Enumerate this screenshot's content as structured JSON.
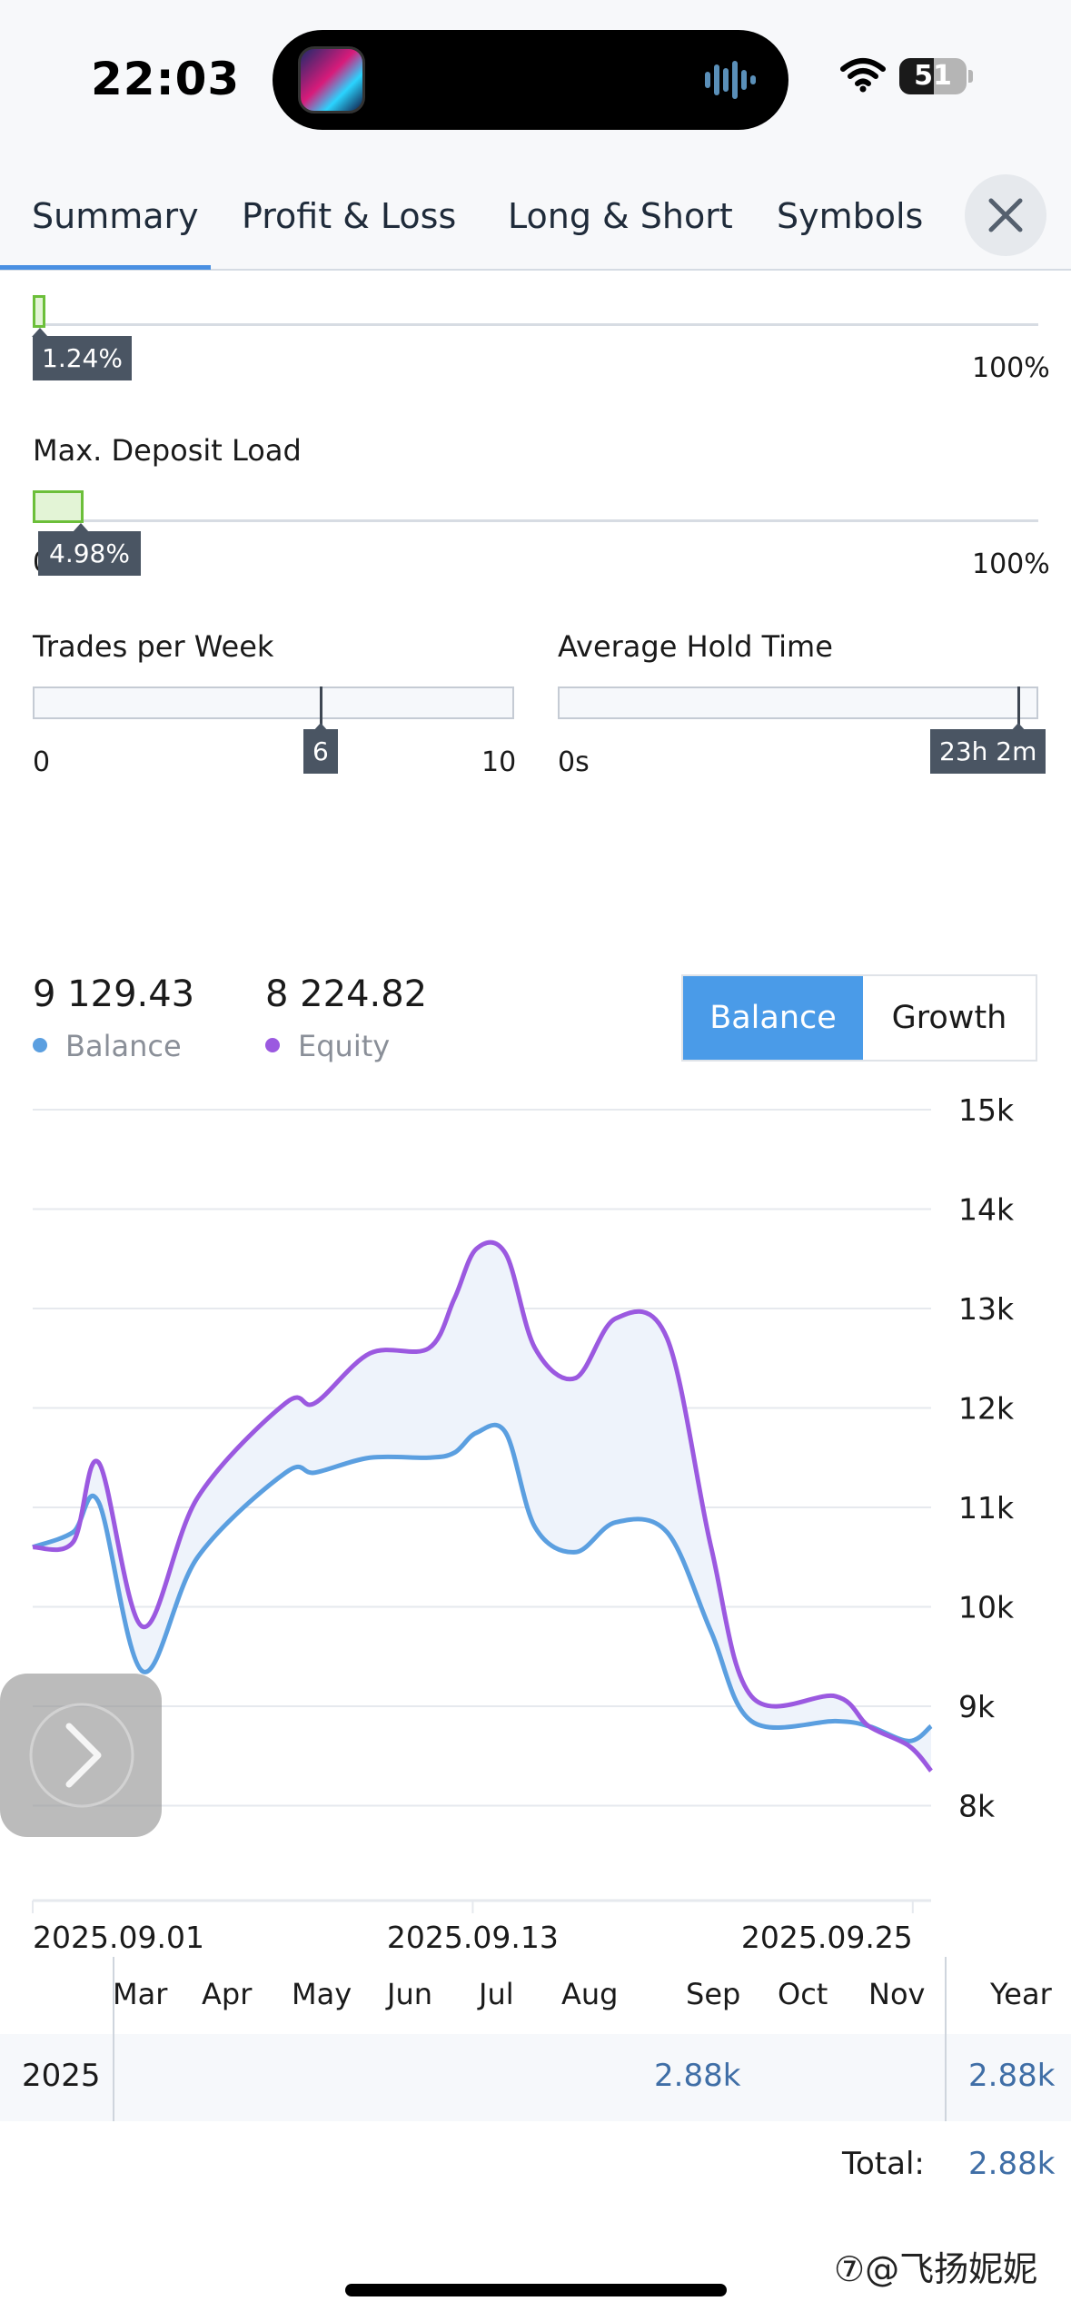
{
  "status_bar": {
    "time": "22:03",
    "battery": "51",
    "battery_level": 0.51
  },
  "tabs": [
    {
      "label": "Summary",
      "active": true
    },
    {
      "label": "Profit & Loss",
      "active": false
    },
    {
      "label": "Long & Short",
      "active": false
    },
    {
      "label": "Symbols",
      "active": false
    }
  ],
  "metrics": {
    "top_bar": {
      "value_label": "1.24%",
      "value": 1.24,
      "max_label": "100%"
    },
    "deposit_load": {
      "title": "Max. Deposit Load",
      "min_label": "0",
      "value_label": "4.98%",
      "value": 4.98,
      "max_label": "100%"
    },
    "trades_per_week": {
      "title": "Trades per Week",
      "min_label": "0",
      "value_label": "6",
      "value": 6,
      "max": 10,
      "max_label": "10"
    },
    "hold_time": {
      "title": "Average Hold Time",
      "min_label": "0s",
      "value_label": "23h 2m",
      "level": 1.0
    }
  },
  "summary": {
    "balance_value": "9 129.43",
    "balance_label": "Balance",
    "equity_value": "8 224.82",
    "equity_label": "Equity",
    "toggle": {
      "balance": "Balance",
      "growth": "Growth",
      "active": "balance"
    }
  },
  "colors": {
    "balance": "#5b9fe0",
    "equity": "#9b59e0",
    "accent": "#4a9be8",
    "link_value": "#3f6ea6"
  },
  "chart_data": {
    "type": "line",
    "y_ticks": [
      "15k",
      "14k",
      "13k",
      "12k",
      "11k",
      "10k",
      "9k",
      "8k"
    ],
    "ylim": [
      7.05,
      15
    ],
    "x_ticks": [
      {
        "label": "2025.09.01",
        "x": 0
      },
      {
        "label": "2025.09.13",
        "x": 12
      },
      {
        "label": "2025.09.25",
        "x": 24
      }
    ],
    "grid": true,
    "series": [
      {
        "name": "Balance",
        "x": [
          0,
          1.1,
          1.8,
          3,
          4.5,
          6.9,
          7.7,
          9.2,
          10.8,
          11.5,
          12.1,
          12.9,
          13.7,
          14.8,
          15.9,
          17.3,
          18.5,
          19.6,
          21.9,
          22.8,
          23.9,
          24.5
        ],
        "values": [
          10.6,
          10.75,
          11.05,
          9.35,
          10.5,
          11.35,
          11.35,
          11.5,
          11.5,
          11.55,
          11.75,
          11.75,
          10.8,
          10.55,
          10.85,
          10.75,
          9.75,
          8.85,
          8.85,
          8.8,
          8.65,
          8.8
        ]
      },
      {
        "name": "Equity",
        "x": [
          0,
          1.1,
          1.8,
          3,
          4.5,
          6.9,
          7.7,
          9.2,
          10.8,
          11.5,
          12.1,
          12.9,
          13.7,
          14.8,
          15.9,
          17.3,
          18.5,
          19.6,
          21.9,
          22.8,
          23.9,
          24.5
        ],
        "values": [
          10.6,
          10.65,
          11.45,
          9.8,
          11.1,
          12.05,
          12.05,
          12.55,
          12.6,
          13.1,
          13.6,
          13.55,
          12.6,
          12.3,
          12.9,
          12.7,
          10.6,
          9.1,
          9.1,
          8.8,
          8.6,
          8.35
        ]
      }
    ]
  },
  "months_table": {
    "months": [
      "Mar",
      "Apr",
      "May",
      "Jun",
      "Jul",
      "Aug",
      "Sep",
      "Oct",
      "Nov"
    ],
    "year_header": "Year",
    "rows": [
      {
        "year": "2025",
        "sep_value": "2.88k",
        "year_total": "2.88k"
      }
    ],
    "total_label": "Total:",
    "total_value": "2.88k"
  },
  "watermark": "⑦@飞扬妮妮"
}
